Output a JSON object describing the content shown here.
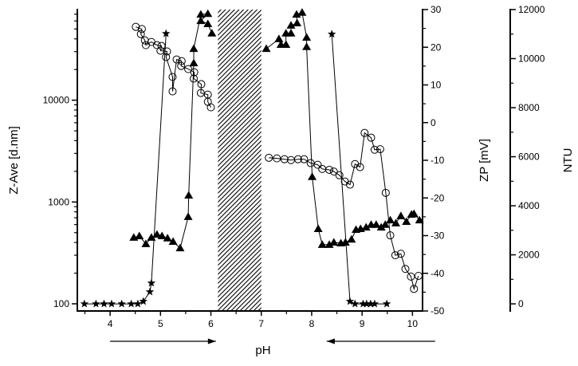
{
  "chart_data": {
    "type": "scatter",
    "title": "",
    "xlabel": "pH",
    "xlim": [
      3.35,
      10.2
    ],
    "xticks": [
      4,
      5,
      6,
      7,
      8,
      9,
      10
    ],
    "axes": {
      "zave": {
        "label": "Z-Ave [d.nm]",
        "scale": "log",
        "lim": [
          85,
          77600
        ],
        "ticks": [
          100,
          1000,
          10000
        ],
        "tick_labels": [
          "100",
          "1000",
          "10000"
        ]
      },
      "zp": {
        "label": "ZP [mV]",
        "scale": "linear",
        "lim": [
          -50,
          30
        ],
        "ticks": [
          -50,
          -40,
          -30,
          -20,
          -10,
          0,
          10,
          20,
          30
        ]
      },
      "ntu": {
        "label": "NTU",
        "scale": "linear",
        "lim": [
          -290,
          12000
        ],
        "ticks": [
          0,
          2000,
          4000,
          6000,
          8000,
          10000,
          12000
        ]
      }
    },
    "shaded_region": {
      "x": [
        6.14,
        7.0
      ],
      "pattern": "diagonal hatch"
    },
    "arrows": [
      {
        "from": 4.0,
        "to": 6.1,
        "direction": "right"
      },
      {
        "from": 10.45,
        "to": 8.3,
        "direction": "left"
      }
    ],
    "series": [
      {
        "name": "Z-Ave",
        "axis": "zave",
        "marker": "circle",
        "segments": [
          [
            [
              4.51,
              52500
            ],
            [
              4.63,
              50000
            ],
            [
              4.61,
              44600
            ],
            [
              4.69,
              38700
            ],
            [
              4.71,
              34700
            ],
            [
              4.82,
              37300
            ],
            [
              4.93,
              34700
            ],
            [
              5.02,
              34100
            ],
            [
              5.0,
              30600
            ],
            [
              5.13,
              30100
            ],
            [
              5.11,
              26500
            ],
            [
              5.24,
              16900
            ],
            [
              5.24,
              12200
            ],
            [
              5.32,
              25100
            ],
            [
              5.42,
              24200
            ],
            [
              5.41,
              21700
            ],
            [
              5.55,
              20200
            ],
            [
              5.67,
              18800
            ],
            [
              5.66,
              16300
            ],
            [
              5.81,
              14360
            ],
            [
              5.8,
              11770
            ],
            [
              5.94,
              11350
            ],
            [
              5.94,
              9640
            ],
            [
              6.0,
              8500
            ]
          ],
          [
            [
              7.15,
              2720
            ],
            [
              7.31,
              2680
            ],
            [
              7.46,
              2630
            ],
            [
              7.59,
              2580
            ],
            [
              7.73,
              2630
            ],
            [
              7.85,
              2630
            ],
            [
              7.98,
              2410
            ],
            [
              8.12,
              2320
            ],
            [
              8.21,
              2110
            ],
            [
              8.35,
              2070
            ],
            [
              8.44,
              1990
            ],
            [
              8.55,
              1830
            ],
            [
              8.66,
              1590
            ],
            [
              8.76,
              1480
            ],
            [
              8.86,
              2360
            ],
            [
              8.96,
              2200
            ],
            [
              9.05,
              4770
            ],
            [
              9.18,
              4280
            ],
            [
              9.25,
              3260
            ],
            [
              9.36,
              3300
            ],
            [
              9.47,
              1230
            ],
            [
              9.56,
              470
            ],
            [
              9.66,
              300
            ],
            [
              9.77,
              310
            ],
            [
              9.86,
              220
            ],
            [
              9.97,
              185
            ],
            [
              10.03,
              140
            ],
            [
              10.12,
              188
            ]
          ]
        ]
      },
      {
        "name": "ZP",
        "axis": "zp",
        "marker": "triangle",
        "segments": [
          [
            [
              4.47,
              -30.5
            ],
            [
              4.58,
              -30.1
            ],
            [
              4.71,
              -32.2
            ],
            [
              4.82,
              -30.5
            ],
            [
              4.93,
              -29.7
            ],
            [
              5.03,
              -30.1
            ],
            [
              5.14,
              -30.7
            ],
            [
              5.25,
              -31.6
            ],
            [
              5.39,
              -33.3
            ],
            [
              5.55,
              -25.0
            ],
            [
              5.56,
              -19.3
            ],
            [
              5.66,
              15.8
            ],
            [
              5.66,
              19.6
            ],
            [
              5.8,
              28.7
            ],
            [
              5.94,
              28.9
            ],
            [
              5.8,
              27.0
            ],
            [
              5.94,
              26.2
            ],
            [
              6.02,
              23.7
            ]
          ],
          [
            [
              7.1,
              19.6
            ],
            [
              7.35,
              22.2
            ],
            [
              7.39,
              20.7
            ],
            [
              7.49,
              20.7
            ],
            [
              7.49,
              23.7
            ],
            [
              7.59,
              23.7
            ],
            [
              7.59,
              25.8
            ],
            [
              7.71,
              26.4
            ],
            [
              7.7,
              28.7
            ],
            [
              7.81,
              29.2
            ],
            [
              7.9,
              22.6
            ],
            [
              7.9,
              20.1
            ],
            [
              8.01,
              -14.4
            ],
            [
              8.13,
              -28.2
            ],
            [
              8.21,
              -32.4
            ],
            [
              8.35,
              -32.4
            ],
            [
              8.44,
              -31.8
            ],
            [
              8.58,
              -32.0
            ],
            [
              8.67,
              -31.8
            ],
            [
              8.79,
              -31.0
            ],
            [
              8.88,
              -28.4
            ],
            [
              8.97,
              -28.2
            ],
            [
              9.08,
              -27.8
            ],
            [
              9.18,
              -27.1
            ],
            [
              9.28,
              -27.1
            ],
            [
              9.38,
              -27.8
            ],
            [
              9.46,
              -27.1
            ],
            [
              9.56,
              -25.9
            ],
            [
              9.67,
              -26.7
            ],
            [
              9.77,
              -24.8
            ],
            [
              9.88,
              -26.3
            ],
            [
              9.98,
              -24.4
            ],
            [
              10.03,
              -24.2
            ],
            [
              10.14,
              -25.9
            ]
          ]
        ]
      },
      {
        "name": "NTU",
        "axis": "ntu",
        "marker": "star",
        "segments": [
          [
            [
              3.49,
              0
            ],
            [
              3.72,
              0
            ],
            [
              3.88,
              0
            ],
            [
              4.03,
              0
            ],
            [
              4.23,
              0
            ],
            [
              4.42,
              0
            ],
            [
              4.55,
              0
            ],
            [
              4.66,
              100
            ],
            [
              4.79,
              490
            ],
            [
              4.82,
              850
            ],
            [
              5.11,
              11020
            ]
          ],
          [
            [
              8.4,
              11000
            ],
            [
              8.76,
              100
            ],
            [
              8.86,
              0
            ],
            [
              9.02,
              0
            ],
            [
              9.09,
              0
            ],
            [
              9.17,
              0
            ],
            [
              9.25,
              0
            ],
            [
              9.49,
              0
            ]
          ]
        ]
      }
    ]
  }
}
